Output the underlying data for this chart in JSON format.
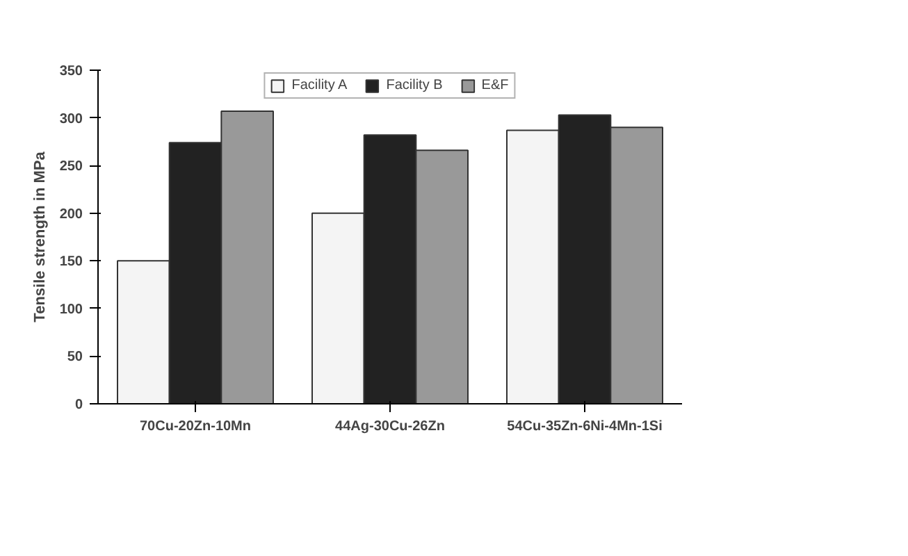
{
  "chart_data": {
    "type": "bar",
    "ylabel": "Tensile strength in MPa",
    "categories": [
      "70Cu-20Zn-10Mn",
      "44Ag-30Cu-26Zn",
      "54Cu-35Zn-6Ni-4Mn-1Si"
    ],
    "series": [
      {
        "name": "Facility A",
        "color": "#f4f4f4",
        "values": [
          150,
          200,
          287
        ]
      },
      {
        "name": "Facility B",
        "color": "#222222",
        "values": [
          274,
          282,
          303
        ]
      },
      {
        "name": "E&F",
        "color": "#999999",
        "values": [
          307,
          266,
          290
        ]
      }
    ],
    "ylim": [
      0,
      350
    ],
    "yticks": [
      0,
      50,
      100,
      150,
      200,
      250,
      300,
      350
    ],
    "legend": "top",
    "grid": false
  }
}
